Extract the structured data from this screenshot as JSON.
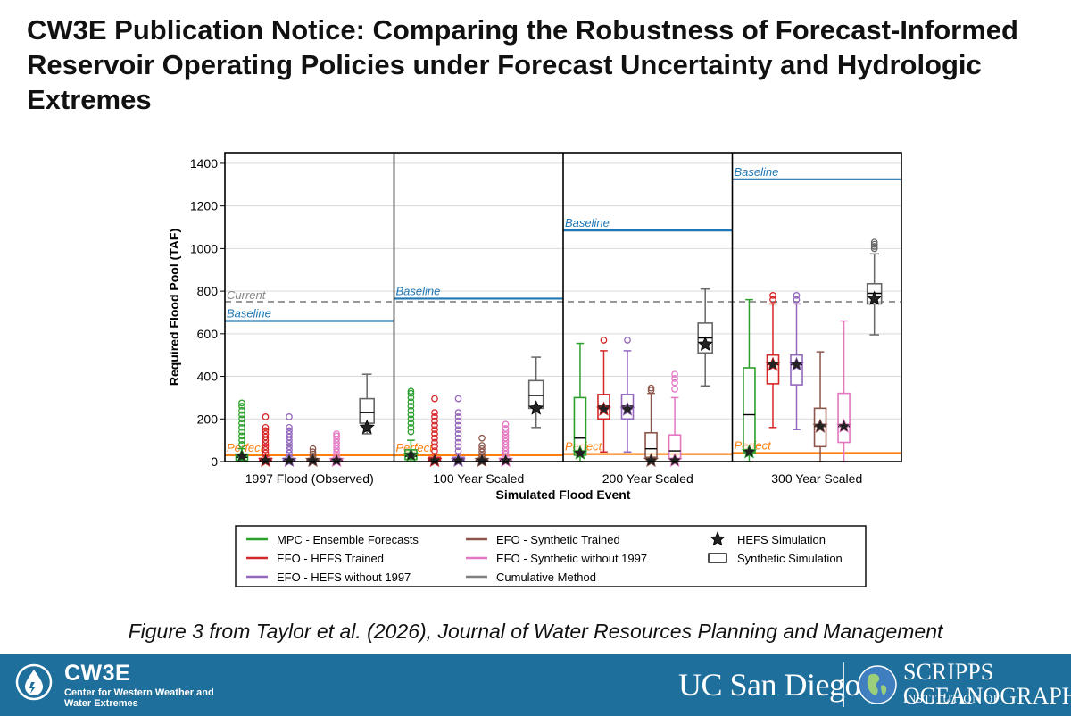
{
  "title": "CW3E Publication Notice: Comparing the Robustness of Forecast-Informed Reservoir Operating Policies under Forecast Uncertainty and Hydrologic Extremes",
  "caption": "Figure 3 from Taylor et al. (2026), Journal of Water Resources Planning and Management",
  "footer": {
    "cw3e_name": "CW3E",
    "cw3e_subtitle": "Center for Western Weather and Water Extremes",
    "ucsd": "UC San Diego",
    "scripps_word": "SCRIPPS",
    "scripps_institution": "INSTITUTION OF",
    "scripps_oceanography": "OCEANOGRAPHY"
  },
  "chart_data": {
    "type": "box",
    "ylabel": "Required Flood Pool (TAF)",
    "xlabel": "Simulated Flood Event",
    "ylim": [
      0,
      1450
    ],
    "yticks": [
      0,
      200,
      400,
      600,
      800,
      1000,
      1200,
      1400
    ],
    "current": {
      "label": "Current",
      "value": 750
    },
    "line_labels": {
      "baseline": "Baseline",
      "perfect": "Perfect"
    },
    "colors": {
      "mpc": "#2ca02c",
      "hefs": "#d62728",
      "hefs97": "#9467bd",
      "syn": "#8c564b",
      "syn97": "#e377c2",
      "cum": "#7f7f7f",
      "baseline": "#1f77b4",
      "perfect": "#ff7f0e",
      "current": "#999999"
    },
    "legend": [
      {
        "key": "mpc",
        "label": "MPC - Ensemble Forecasts"
      },
      {
        "key": "hefs",
        "label": "EFO - HEFS Trained"
      },
      {
        "key": "hefs97",
        "label": "EFO - HEFS without 1997"
      },
      {
        "key": "syn",
        "label": "EFO - Synthetic Trained"
      },
      {
        "key": "syn97",
        "label": "EFO - Synthetic without 1997"
      },
      {
        "key": "cum",
        "label": "Cumulative Method"
      },
      {
        "key": "star",
        "label": "HEFS Simulation"
      },
      {
        "key": "box",
        "label": "Synthetic Simulation"
      }
    ],
    "panels": [
      {
        "label": "1997 Flood (Observed)",
        "baseline": 660,
        "perfect": 30,
        "series": [
          {
            "key": "mpc",
            "q1": 5,
            "median": 20,
            "q3": 35,
            "low": 0,
            "high": 60,
            "hefs": 25,
            "outliers": [
              80,
              100,
              120,
              140,
              160,
              180,
              200,
              220,
              240,
              260,
              275
            ]
          },
          {
            "key": "hefs",
            "q1": 2,
            "median": 5,
            "q3": 15,
            "low": 0,
            "high": 25,
            "hefs": 5,
            "outliers": [
              40,
              55,
              70,
              85,
              100,
              115,
              130,
              145,
              160,
              210
            ]
          },
          {
            "key": "hefs97",
            "q1": 2,
            "median": 5,
            "q3": 15,
            "low": 0,
            "high": 25,
            "hefs": 5,
            "outliers": [
              40,
              55,
              70,
              85,
              100,
              115,
              130,
              145,
              160,
              210
            ]
          },
          {
            "key": "syn",
            "q1": 1,
            "median": 3,
            "q3": 8,
            "low": 0,
            "high": 15,
            "hefs": 5,
            "outliers": [
              25,
              35,
              45,
              60
            ]
          },
          {
            "key": "syn97",
            "q1": 2,
            "median": 5,
            "q3": 12,
            "low": 0,
            "high": 20,
            "hefs": 5,
            "outliers": [
              30,
              45,
              60,
              75,
              90,
              105,
              120,
              130
            ]
          },
          {
            "key": "cum",
            "q1": 180,
            "median": 230,
            "q3": 295,
            "low": 130,
            "high": 410,
            "hefs": 160,
            "outliers": []
          }
        ]
      },
      {
        "label": "100 Year Scaled",
        "baseline": 765,
        "perfect": 30,
        "series": [
          {
            "key": "mpc",
            "q1": 10,
            "median": 25,
            "q3": 55,
            "low": 0,
            "high": 100,
            "hefs": 30,
            "outliers": [
              140,
              160,
              180,
              200,
              220,
              240,
              260,
              280,
              300,
              320,
              330
            ]
          },
          {
            "key": "hefs",
            "q1": 3,
            "median": 8,
            "q3": 20,
            "low": 0,
            "high": 35,
            "hefs": 5,
            "outliers": [
              50,
              70,
              90,
              110,
              130,
              150,
              170,
              190,
              210,
              230,
              295
            ]
          },
          {
            "key": "hefs97",
            "q1": 3,
            "median": 8,
            "q3": 20,
            "low": 0,
            "high": 35,
            "hefs": 5,
            "outliers": [
              50,
              70,
              90,
              110,
              130,
              150,
              170,
              190,
              210,
              230,
              295
            ]
          },
          {
            "key": "syn",
            "q1": 2,
            "median": 5,
            "q3": 12,
            "low": 0,
            "high": 20,
            "hefs": 5,
            "outliers": [
              30,
              45,
              60,
              75,
              110
            ]
          },
          {
            "key": "syn97",
            "q1": 3,
            "median": 6,
            "q3": 15,
            "low": 0,
            "high": 25,
            "hefs": 5,
            "outliers": [
              35,
              50,
              65,
              80,
              95,
              110,
              125,
              140,
              155,
              175
            ]
          },
          {
            "key": "cum",
            "q1": 250,
            "median": 310,
            "q3": 380,
            "low": 160,
            "high": 490,
            "hefs": 250,
            "outliers": []
          }
        ]
      },
      {
        "label": "200 Year Scaled",
        "baseline": 1085,
        "perfect": 35,
        "series": [
          {
            "key": "mpc",
            "q1": 30,
            "median": 110,
            "q3": 300,
            "low": 0,
            "high": 555,
            "hefs": 40,
            "outliers": []
          },
          {
            "key": "hefs",
            "q1": 200,
            "median": 260,
            "q3": 315,
            "low": 45,
            "high": 520,
            "hefs": 245,
            "outliers": [
              570
            ]
          },
          {
            "key": "hefs97",
            "q1": 200,
            "median": 260,
            "q3": 315,
            "low": 45,
            "high": 520,
            "hefs": 245,
            "outliers": [
              570
            ]
          },
          {
            "key": "syn",
            "q1": 20,
            "median": 60,
            "q3": 135,
            "low": 0,
            "high": 320,
            "hefs": 5,
            "outliers": [
              335,
              345
            ]
          },
          {
            "key": "syn97",
            "q1": 15,
            "median": 50,
            "q3": 125,
            "low": 0,
            "high": 300,
            "hefs": 5,
            "outliers": [
              340,
              370,
              390,
              410
            ]
          },
          {
            "key": "cum",
            "q1": 510,
            "median": 580,
            "q3": 650,
            "low": 355,
            "high": 810,
            "hefs": 550,
            "outliers": []
          }
        ]
      },
      {
        "label": "300 Year Scaled",
        "baseline": 1325,
        "perfect": 40,
        "series": [
          {
            "key": "mpc",
            "q1": 40,
            "median": 220,
            "q3": 440,
            "low": 0,
            "high": 760,
            "hefs": 45,
            "outliers": []
          },
          {
            "key": "hefs",
            "q1": 365,
            "median": 455,
            "q3": 500,
            "low": 160,
            "high": 740,
            "hefs": 455,
            "outliers": [
              760,
              780
            ]
          },
          {
            "key": "hefs97",
            "q1": 360,
            "median": 455,
            "q3": 500,
            "low": 150,
            "high": 740,
            "hefs": 455,
            "outliers": [
              760,
              780
            ]
          },
          {
            "key": "syn",
            "q1": 70,
            "median": 165,
            "q3": 250,
            "low": 0,
            "high": 515,
            "hefs": 165,
            "outliers": []
          },
          {
            "key": "syn97",
            "q1": 90,
            "median": 165,
            "q3": 320,
            "low": 0,
            "high": 660,
            "hefs": 165,
            "outliers": []
          },
          {
            "key": "cum",
            "q1": 740,
            "median": 790,
            "q3": 835,
            "low": 595,
            "high": 975,
            "hefs": 765,
            "outliers": [
              1000,
              1010,
              1020,
              1030
            ]
          }
        ]
      }
    ]
  }
}
